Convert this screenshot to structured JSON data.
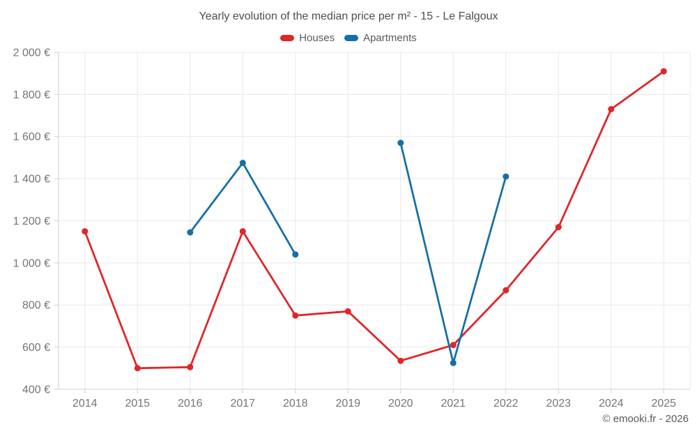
{
  "title": "Yearly evolution of the median price per m² - 15 - Le Falgoux",
  "attribution": "© emooki.fr - 2026",
  "colors": {
    "houses": "#e02629",
    "apartments": "#176fa5",
    "grid": "#e8e8e8",
    "axis": "#cfcfcf",
    "title_text": "#4d4d4d",
    "tick_text": "#757575",
    "legend_text": "#595959",
    "background": "#ffffff"
  },
  "chart_data": {
    "type": "line",
    "title": "Yearly evolution of the median price per m² - 15 - Le Falgoux",
    "categories": [
      "2014",
      "2015",
      "2016",
      "2017",
      "2018",
      "2019",
      "2020",
      "2021",
      "2022",
      "2023",
      "2024",
      "2025"
    ],
    "series": [
      {
        "name": "Houses",
        "color": "#e02629",
        "values": [
          1150,
          500,
          505,
          1150,
          750,
          770,
          535,
          610,
          870,
          1170,
          1730,
          1910
        ]
      },
      {
        "name": "Apartments",
        "color": "#176fa5",
        "values": [
          null,
          null,
          1145,
          1475,
          1040,
          null,
          1570,
          525,
          1410,
          null,
          null,
          null
        ]
      }
    ],
    "xlabel": "",
    "ylabel": "",
    "ylim": [
      400,
      2000
    ],
    "ytick_step": 200,
    "ytick_labels": [
      "400 €",
      "600 €",
      "800 €",
      "1 000 €",
      "1 200 €",
      "1 400 €",
      "1 600 €",
      "1 800 €",
      "2 000 €"
    ],
    "grid": true,
    "legend_position": "top",
    "marker": "circle"
  }
}
